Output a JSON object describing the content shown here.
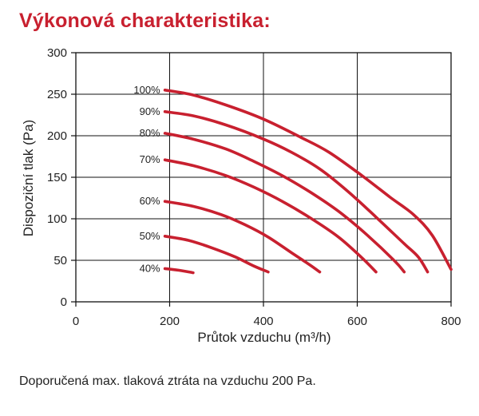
{
  "title": "Výkonová charakteristika:",
  "note": "Doporučená max. tlaková ztráta na vzduchu 200 Pa.",
  "colors": {
    "curve": "#c8202f",
    "title": "#c8202f",
    "grid": "#111111"
  },
  "chart_data": {
    "type": "line",
    "xlabel": "Průtok vzduchu (m³/h)",
    "ylabel": "Dispoziční tlak (Pa)",
    "xlim": [
      0,
      800
    ],
    "ylim": [
      0,
      300
    ],
    "xticks": [
      0,
      200,
      400,
      600,
      800
    ],
    "yticks": [
      0,
      50,
      100,
      150,
      200,
      250,
      300
    ],
    "grid": true,
    "legend": "inline-left",
    "series": [
      {
        "name": "100%",
        "x": [
          190,
          250,
          320,
          400,
          480,
          540,
          610,
          670,
          720,
          760,
          800
        ],
        "y": [
          255,
          249,
          237,
          220,
          198,
          180,
          152,
          126,
          105,
          80,
          39
        ]
      },
      {
        "name": "90%",
        "x": [
          190,
          250,
          320,
          400,
          460,
          520,
          580,
          640,
          700,
          730,
          750
        ],
        "y": [
          229,
          224,
          213,
          196,
          180,
          160,
          133,
          102,
          70,
          54,
          36
        ]
      },
      {
        "name": "80%",
        "x": [
          190,
          250,
          320,
          380,
          440,
          500,
          560,
          620,
          680,
          700
        ],
        "y": [
          203,
          196,
          184,
          169,
          152,
          132,
          109,
          81,
          49,
          36
        ]
      },
      {
        "name": "70%",
        "x": [
          190,
          250,
          320,
          380,
          440,
          500,
          560,
          610,
          640
        ],
        "y": [
          171,
          164,
          152,
          138,
          121,
          101,
          78,
          53,
          36
        ]
      },
      {
        "name": "60%",
        "x": [
          190,
          250,
          310,
          360,
          410,
          460,
          500,
          520
        ],
        "y": [
          121,
          115,
          105,
          93,
          78,
          59,
          44,
          36
        ]
      },
      {
        "name": "50%",
        "x": [
          190,
          240,
          290,
          340,
          380,
          410
        ],
        "y": [
          79,
          74,
          65,
          54,
          43,
          36
        ]
      },
      {
        "name": "40%",
        "x": [
          190,
          220,
          250
        ],
        "y": [
          40,
          38,
          35
        ]
      }
    ]
  }
}
